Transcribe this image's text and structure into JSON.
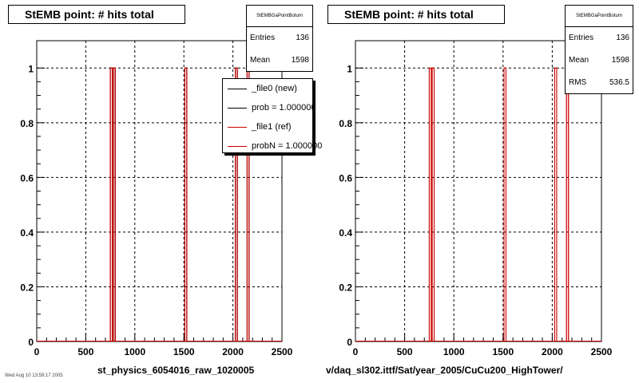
{
  "chart_data": [
    {
      "type": "histogram",
      "title": "StEMB point: # hits total",
      "xlabel": "st_physics_6054016_raw_1020005",
      "ylabel": "",
      "xlim": [
        0,
        2500
      ],
      "ylim": [
        0,
        1.1
      ],
      "xticks": [
        0,
        500,
        1000,
        1500,
        2000,
        2500
      ],
      "yticks": [
        0,
        0.2,
        0.4,
        0.6,
        0.8,
        1
      ],
      "grid": true,
      "series": [
        {
          "name": "_file0 (new)",
          "color": "#000000",
          "peaks": [
            760,
            790,
            1520,
            2035,
            2155
          ],
          "values": [
            1,
            1,
            1,
            1,
            1
          ]
        },
        {
          "name": "_file1 (ref)",
          "color": "#cc0000",
          "peaks": [
            760,
            790,
            1520,
            2035,
            2155
          ],
          "values": [
            1,
            1,
            1,
            1,
            1
          ]
        }
      ],
      "stats": {
        "name": "StEMBGaPointBotum",
        "entries_label": "Entries",
        "entries": "136",
        "mean_label": "Mean",
        "mean": "1598"
      },
      "legend": [
        "_file0 (new)",
        "prob = 1.000000",
        "_file1 (ref)",
        "probN = 1.000000"
      ]
    },
    {
      "type": "histogram",
      "title": "StEMB point: # hits total",
      "xlabel": "v/daq_sl302.ittf/Sat/year_2005/CuCu200_HighTower/",
      "ylabel": "",
      "xlim": [
        0,
        2500
      ],
      "ylim": [
        0,
        1.1
      ],
      "xticks": [
        0,
        500,
        1000,
        1500,
        2000,
        2500
      ],
      "yticks": [
        0,
        0.2,
        0.4,
        0.6,
        0.8,
        1
      ],
      "grid": true,
      "series": [
        {
          "name": "",
          "color": "#cc0000",
          "peaks": [
            760,
            790,
            1520,
            2035,
            2155
          ],
          "values": [
            1,
            1,
            1,
            1,
            1
          ]
        }
      ],
      "stats": {
        "name": "StEMBGaPointBotum",
        "entries_label": "Entries",
        "entries": "136",
        "mean_label": "Mean",
        "mean": "1598",
        "rms_label": "RMS",
        "rms": "536.5"
      }
    }
  ],
  "footer": "Wed Aug 10 13:59:17 2005"
}
